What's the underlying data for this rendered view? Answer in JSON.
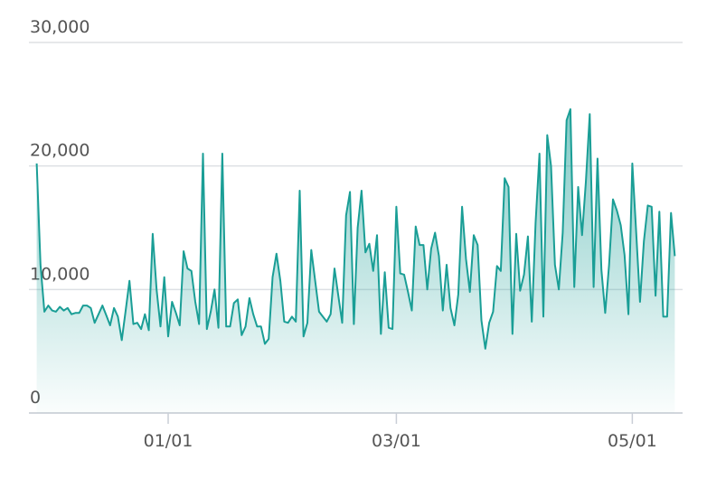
{
  "chart_data": {
    "type": "area",
    "color": "#1a9e96",
    "grid": true,
    "x": [
      -34,
      -33,
      -32,
      -31,
      -30,
      -29,
      -28,
      -27,
      -26,
      -25,
      -24,
      -23,
      -22,
      -21,
      -20,
      -19,
      -18,
      -17,
      -16,
      -15,
      -14,
      -13,
      -12,
      -11,
      -10,
      -9,
      -8,
      -7,
      -6,
      -5,
      -4,
      -3,
      -2,
      -1,
      0,
      1,
      2,
      3,
      4,
      5,
      6,
      7,
      8,
      9,
      10,
      11,
      12,
      13,
      14,
      15,
      16,
      17,
      18,
      19,
      20,
      21,
      22,
      23,
      24,
      25,
      26,
      27,
      28,
      29,
      30,
      31,
      32,
      33,
      34,
      35,
      36,
      37,
      38,
      39,
      40,
      41,
      42,
      43,
      44,
      45,
      46,
      47,
      48,
      49,
      50,
      51,
      52,
      53,
      54,
      55,
      56,
      57,
      58,
      59,
      60,
      61,
      62,
      63,
      64,
      65,
      66,
      67,
      68,
      69,
      70,
      71,
      72,
      73,
      74,
      75,
      76,
      77,
      78,
      79,
      80,
      81,
      82,
      83,
      84,
      85,
      86,
      87,
      88,
      89,
      90,
      91,
      92,
      93,
      94,
      95,
      96,
      97,
      98,
      99,
      100,
      101,
      102,
      103,
      104,
      105,
      106,
      107,
      108,
      109,
      110,
      111,
      112,
      113,
      114,
      115,
      116,
      117,
      118,
      119,
      120,
      121,
      122,
      123,
      124,
      125,
      126,
      127,
      128,
      129,
      130,
      131
    ],
    "values": [
      20200,
      12000,
      8200,
      8700,
      8300,
      8200,
      8600,
      8300,
      8500,
      8000,
      8100,
      8100,
      8700,
      8700,
      8500,
      7300,
      8000,
      8700,
      7900,
      7100,
      8500,
      7800,
      5900,
      8300,
      10700,
      7200,
      7300,
      6800,
      8000,
      6700,
      14500,
      10000,
      7000,
      11000,
      6200,
      9000,
      8100,
      7100,
      13100,
      11700,
      11500,
      9000,
      7200,
      21000,
      6800,
      8200,
      10000,
      6900,
      21000,
      7000,
      7000,
      8900,
      9200,
      6300,
      7000,
      9300,
      8000,
      7000,
      7000,
      5600,
      6000,
      11000,
      12900,
      10700,
      7400,
      7300,
      7800,
      7400,
      18000,
      6200,
      7300,
      13200,
      10700,
      8200,
      7800,
      7400,
      8000,
      11700,
      9500,
      7300,
      16000,
      17900,
      7200,
      15000,
      18000,
      13000,
      13700,
      11500,
      14400,
      6400,
      11400,
      6900,
      6800,
      16700,
      11300,
      11200,
      9800,
      8300,
      15100,
      13600,
      13600,
      10000,
      13300,
      14600,
      12700,
      8300,
      12000,
      8500,
      7100,
      9600,
      16700,
      12500,
      9800,
      14400,
      13600,
      7500,
      5200,
      7300,
      8200,
      11900,
      11500,
      19000,
      18300,
      6400,
      14500,
      9900,
      11200,
      14300,
      7400,
      15400,
      21000,
      7800,
      22500,
      20000,
      12000,
      10000,
      14600,
      23700,
      24600,
      10200,
      18300,
      14400,
      18700,
      24200,
      10200,
      20600,
      11600,
      8100,
      12000,
      17300,
      16400,
      15200,
      12800,
      8000,
      20200,
      14600,
      9000,
      13900,
      16800,
      16700,
      9500,
      16300,
      7800,
      7800,
      16200,
      12700
    ],
    "xlim": [
      -36,
      133
    ],
    "xticks": [
      {
        "value": 0,
        "label": "01/01"
      },
      {
        "value": 59,
        "label": "03/01"
      },
      {
        "value": 120,
        "label": "05/01"
      }
    ],
    "ylim": [
      0,
      30000
    ],
    "yticks": [
      0,
      {
        "value": 10000,
        "label": "10,000"
      },
      {
        "value": 20000,
        "label": "20,000"
      },
      {
        "value": 30000,
        "label": "30,000"
      }
    ]
  }
}
